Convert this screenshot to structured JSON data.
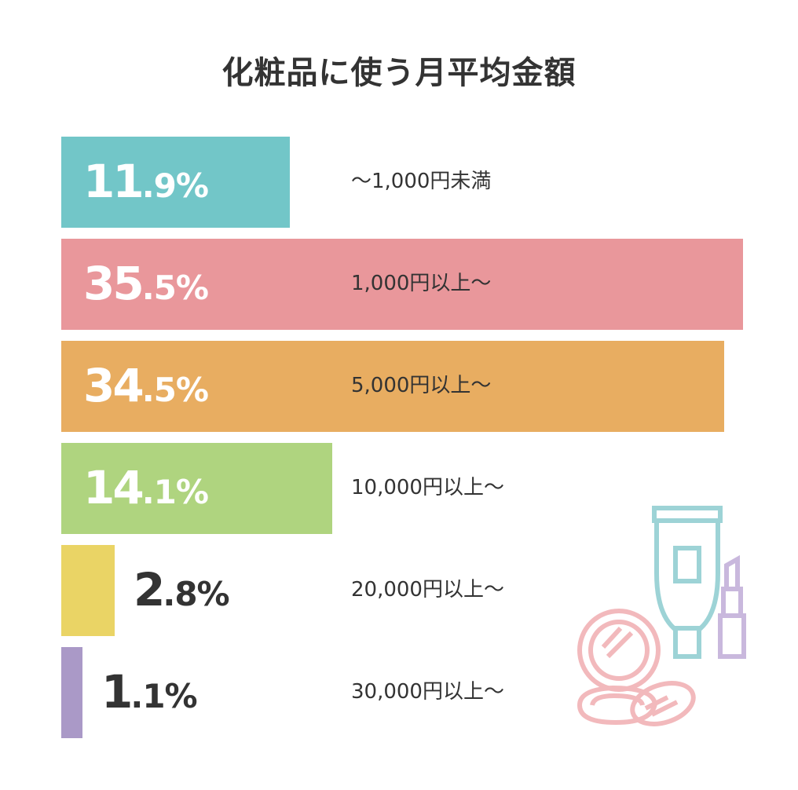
{
  "title": "化粧品に使う月平均金額",
  "chart_data": {
    "type": "bar",
    "orientation": "horizontal",
    "title": "化粧品に使う月平均金額",
    "categories": [
      "〜1,000円未満",
      "1,000円以上〜",
      "5,000円以上〜",
      "10,000円以上〜",
      "20,000円以上〜",
      "30,000円以上〜"
    ],
    "values": [
      11.9,
      35.5,
      34.5,
      14.1,
      2.8,
      1.1
    ],
    "labels": [
      {
        "int": "11",
        "dec": ".9%"
      },
      {
        "int": "35",
        "dec": ".5%"
      },
      {
        "int": "34",
        "dec": ".5%"
      },
      {
        "int": "14",
        "dec": ".1%"
      },
      {
        "int": "2",
        "dec": ".8%"
      },
      {
        "int": "1",
        "dec": ".1%"
      }
    ],
    "colors": [
      "#72C6C8",
      "#E9979B",
      "#E8AD61",
      "#AFD47F",
      "#EAD465",
      "#AA99C7"
    ],
    "label_colors": [
      "#ffffff",
      "#ffffff",
      "#ffffff",
      "#ffffff",
      "#333333",
      "#333333"
    ],
    "xlim": [
      0,
      35.5
    ],
    "grid": false,
    "legend": "none"
  },
  "illustration": {
    "icons": [
      "cosmetic-tube-icon",
      "lipstick-icon",
      "compact-powder-icon",
      "makeup-puff-icon"
    ],
    "colors": {
      "tube": "#9DD3D6",
      "lipstick": "#C9B8DD",
      "compact": "#F2B9BC"
    }
  }
}
